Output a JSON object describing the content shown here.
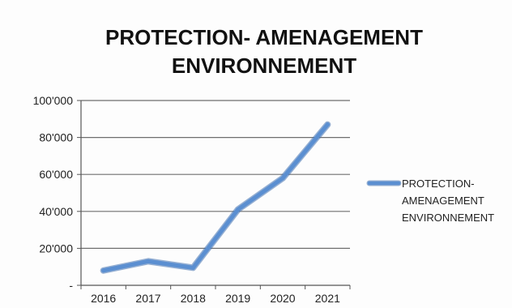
{
  "chart_data": {
    "type": "line",
    "title": [
      "PROTECTION- AMENAGEMENT",
      "ENVIRONNEMENT"
    ],
    "categories": [
      "2016",
      "2017",
      "2018",
      "2019",
      "2020",
      "2021"
    ],
    "series": [
      {
        "name": "PROTECTION- AMENAGEMENT ENVIRONNEMENT",
        "legend_lines": [
          "PROTECTION-",
          "AMENAGEMENT",
          "ENVIRONNEMENT"
        ],
        "values": [
          8000,
          13000,
          9500,
          41000,
          58000,
          87000
        ],
        "color": "#5b8fd1"
      }
    ],
    "ylim": [
      0,
      100000
    ],
    "yticks": [
      0,
      20000,
      40000,
      60000,
      80000,
      100000
    ],
    "ytick_labels": [
      "-",
      "20'000",
      "40'000",
      "60'000",
      "80'000",
      "100'000"
    ],
    "grid": true,
    "legend_position": "right",
    "xlabel": "",
    "ylabel": ""
  }
}
